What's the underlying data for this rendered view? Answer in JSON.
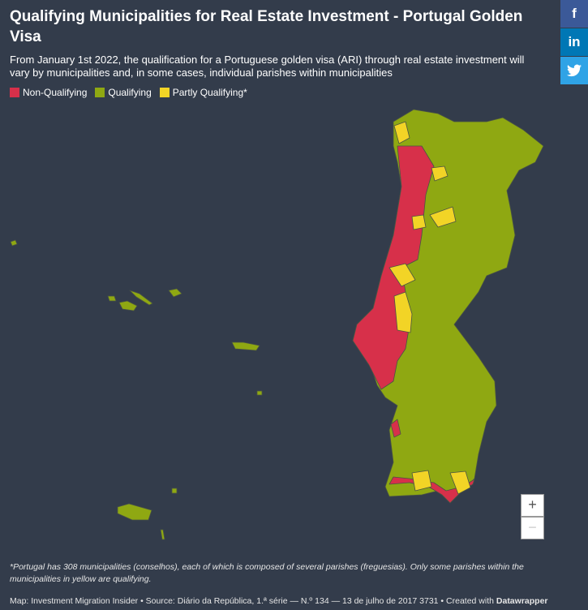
{
  "header": {
    "title": "Qualifying Municipalities for Real Estate Investment - Portugal Golden Visa",
    "subtitle": "From January 1st 2022, the qualification for a Portuguese golden visa (ARI) through real estate investment will vary by municipalities and, in some cases, individual parishes within municipalities"
  },
  "legend": [
    {
      "label": "Non-Qualifying",
      "color": "#d7304a"
    },
    {
      "label": "Qualifying",
      "color": "#8fa812"
    },
    {
      "label": "Partly Qualifying*",
      "color": "#f2d426"
    }
  ],
  "controls": {
    "zoom_in": "+",
    "zoom_out": "−"
  },
  "share": {
    "facebook": "f",
    "linkedin": "in"
  },
  "footnote": "*Portugal has 308 municipalities (conselhos), each of which is composed of several parishes (freguesias). Only some parishes within the municipalities in yellow are qualifying.",
  "source": {
    "text": "Map: Investment Migration Insider • Source: Diário da República, 1.ª série — N.º 134 — 13 de julho de 2017 3731 • Created with ",
    "brand": "Datawrapper"
  }
}
